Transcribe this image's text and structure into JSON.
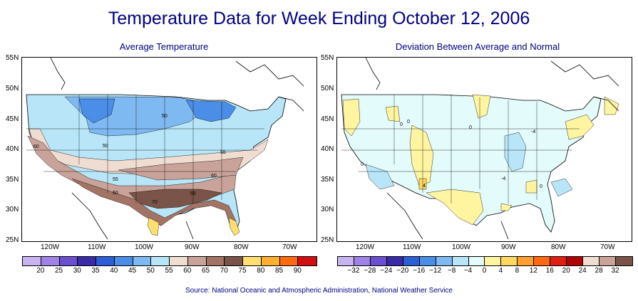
{
  "title": "Temperature Data for Week Ending October 12, 2006",
  "source": "Source:  National Oceanic and Atmospheric Administration, National Weather Service",
  "left_map": {
    "title": "Average Temperature",
    "lat_labels": [
      "55N",
      "50N",
      "45N",
      "40N",
      "35N",
      "30N",
      "25N"
    ],
    "lon_labels": [
      "120W",
      "110W",
      "100W",
      "90W",
      "80W",
      "70W"
    ],
    "contour_labels": [
      "50",
      "50",
      "60",
      "55",
      "55",
      "60",
      "65",
      "60",
      "70"
    ],
    "colorbar_labels": [
      "20",
      "25",
      "30",
      "35",
      "40",
      "45",
      "50",
      "55",
      "60",
      "65",
      "70",
      "75",
      "80",
      "85",
      "90"
    ],
    "colors": [
      "#c8b4f0",
      "#9f82e6",
      "#6a4fd0",
      "#3a2aa8",
      "#2c5fd6",
      "#4a8ee8",
      "#7fb9f2",
      "#b8e6f8",
      "#f0ddd2",
      "#c9a39a",
      "#a37466",
      "#7a5448",
      "#ffe070",
      "#ffb030",
      "#ff6a10",
      "#d01010"
    ]
  },
  "right_map": {
    "title": "Deviation Between Average and Normal",
    "lat_labels": [
      "55N",
      "50N",
      "45N",
      "40N",
      "35N",
      "30N",
      "25N"
    ],
    "lon_labels": [
      "120W",
      "110W",
      "100W",
      "90W",
      "80W",
      "70W"
    ],
    "contour_labels": [
      "0",
      "0",
      "0",
      "0",
      "-4",
      "4",
      "0",
      "-4"
    ],
    "colorbar_labels": [
      "−32",
      "−28",
      "−24",
      "−20",
      "−16",
      "−12",
      "−8",
      "−4",
      "0",
      "4",
      "8",
      "12",
      "16",
      "20",
      "24",
      "28",
      "32"
    ],
    "colors": [
      "#c8b4f0",
      "#9f82e6",
      "#6a4fd0",
      "#3a2aa8",
      "#2c5fd6",
      "#4a8ee8",
      "#7fb9f2",
      "#b8e6f8",
      "#e4fbfb",
      "#fff4a0",
      "#ffd860",
      "#ffa030",
      "#ff6a10",
      "#e02010",
      "#b00000",
      "#f0ddd2",
      "#c9a39a",
      "#7a5448"
    ]
  }
}
